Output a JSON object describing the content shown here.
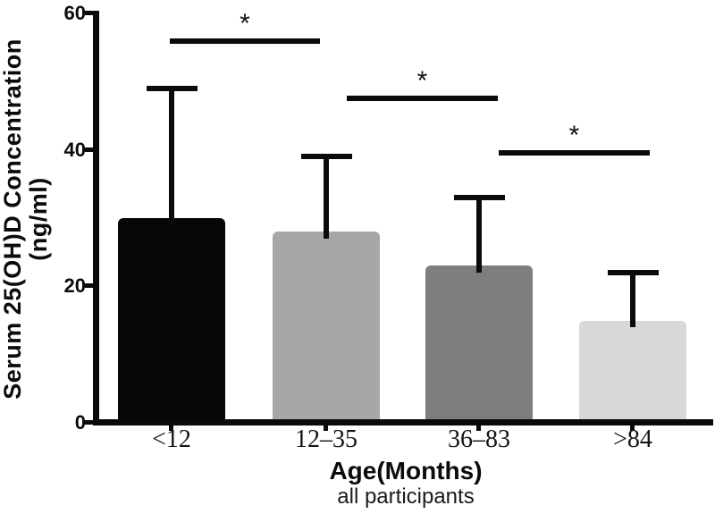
{
  "figure": {
    "background": "#ffffff",
    "axis_color": "#0a0a0a",
    "y_axis": {
      "title_line1": "Serum 25(OH)D Concentration",
      "title_line2": "(ng/ml)",
      "tick_labels": [
        "0",
        "20",
        "40",
        "60"
      ]
    },
    "x_axis": {
      "title": "Age(Months)",
      "subtitle": "all participants",
      "categories": [
        "<12",
        "12–35",
        "36–83",
        ">84"
      ]
    }
  },
  "chart_data": {
    "type": "bar",
    "title": "",
    "ylabel": "Serum 25(OH)D Concentration (ng/ml)",
    "xlabel": "Age(Months)",
    "xlabel_note": "all participants",
    "categories": [
      "<12",
      "12–35",
      "36–83",
      ">84"
    ],
    "values": [
      30,
      28,
      23,
      15
    ],
    "error_upper": [
      19,
      11,
      10,
      7
    ],
    "bar_colors": [
      "#060606",
      "#a7a7a7",
      "#7e7e7e",
      "#d8d8d8"
    ],
    "error_color": "#0b0b0b",
    "ylim": [
      0,
      60
    ],
    "yticks": [
      0,
      20,
      40,
      60
    ],
    "grid": false,
    "legend_position": "none",
    "significance": [
      {
        "pair": [
          0,
          1
        ],
        "label": "*",
        "y": 56
      },
      {
        "pair": [
          1,
          2
        ],
        "label": "*",
        "y": 47.5
      },
      {
        "pair": [
          2,
          3
        ],
        "label": "*",
        "y": 39.5
      }
    ]
  }
}
